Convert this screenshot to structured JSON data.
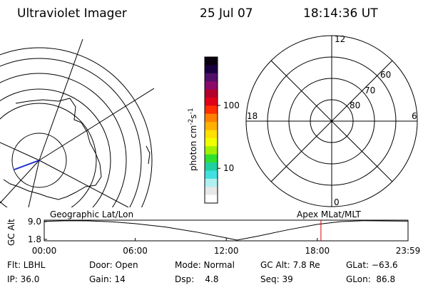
{
  "header": {
    "title": "Ultraviolet Imager",
    "date": "25 Jul 07",
    "time": "18:14:36 UT"
  },
  "colorbar": {
    "label_parts": [
      "photon cm",
      "-2",
      "s",
      "-1"
    ],
    "log_scale": true,
    "lim": [
      2.8,
      590
    ],
    "ticks": [
      10,
      100
    ],
    "colors": [
      "#0a0010",
      "#1a0040",
      "#50106a",
      "#8a0a6a",
      "#b4002a",
      "#e0001a",
      "#ff3000",
      "#ff8000",
      "#ffb000",
      "#ffe000",
      "#f0ff00",
      "#a0f000",
      "#30e030",
      "#20d0a0",
      "#40e0e0",
      "#b0f0f0",
      "#e8e8e8",
      "#ffffff"
    ]
  },
  "polar": {
    "mlt_labels": [
      "12",
      "18",
      "6",
      "0"
    ],
    "lat_labels": [
      "60",
      "70",
      "80"
    ]
  },
  "chart_data": {
    "type": "line",
    "title_left": "Geographic Lat/Lon",
    "title_right": "Apex MLat/MLT",
    "ylabel": "GC Alt",
    "x": [
      0,
      1.5,
      3,
      4.5,
      6,
      8,
      10,
      12,
      12.7,
      14,
      16,
      18,
      19.5,
      21,
      23.98
    ],
    "series": [
      {
        "color": "#000000",
        "values": [
          9.1,
          9.4,
          9.3,
          8.9,
          8.2,
          6.8,
          4.8,
          2.4,
          1.5,
          3.0,
          5.6,
          7.9,
          9.0,
          9.4,
          9.2
        ]
      }
    ],
    "xlim": [
      0,
      23.98
    ],
    "ylim": [
      1.2,
      9.6
    ],
    "yticks": [
      {
        "value": 9.0,
        "label": "9.0"
      },
      {
        "value": 1.8,
        "label": "1.8"
      }
    ],
    "xticks": [
      {
        "value": 0,
        "label": "00:00"
      },
      {
        "value": 6,
        "label": "06:00"
      },
      {
        "value": 12,
        "label": "12:00"
      },
      {
        "value": 18,
        "label": "18:00"
      },
      {
        "value": 23.98,
        "label": "23:59"
      }
    ],
    "marker_x": 18.24,
    "marker_color": "#e00000"
  },
  "footer": {
    "rows": [
      [
        "Flt: LBHL",
        "Door: Open",
        "Mode: Normal",
        "GC Alt: 7.8 Re",
        "GLat: −63.6"
      ],
      [
        "IP: 36.0",
        "Gain: 14",
        "Dsp:    4.8",
        "Seq: 39",
        "GLon:  86.8"
      ]
    ]
  }
}
